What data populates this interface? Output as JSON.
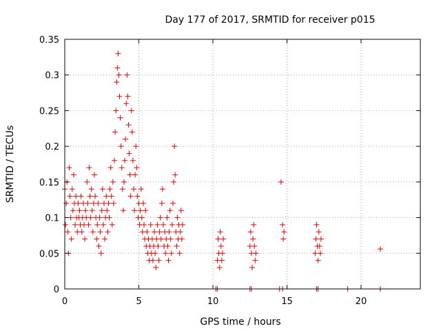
{
  "chart_data": {
    "type": "scatter",
    "title": "Day 177 of 2017, SRMTID for receiver p015",
    "xlabel": "GPS time / hours",
    "ylabel": "SRMTID / TECUs",
    "xlim": [
      0,
      24
    ],
    "ylim": [
      0,
      0.35
    ],
    "xticks": [
      0,
      5,
      10,
      15,
      20
    ],
    "xtick_labels": [
      "0",
      "5",
      "10",
      "15",
      "20"
    ],
    "yticks": [
      0,
      0.05,
      0.1,
      0.15,
      0.2,
      0.25,
      0.3,
      0.35
    ],
    "ytick_labels": [
      "0",
      "0.05",
      "0.1",
      "0.15",
      "0.2",
      "0.25",
      "0.3",
      "0.35"
    ],
    "grid": true,
    "marker": "+",
    "color": "#dd0000",
    "series": [
      {
        "name": "SRMTID",
        "points": [
          [
            0.0,
            0.14
          ],
          [
            0.05,
            0.09
          ],
          [
            0.1,
            0.12
          ],
          [
            0.15,
            0.15
          ],
          [
            0.2,
            0.08
          ],
          [
            0.25,
            0.05
          ],
          [
            0.3,
            0.17
          ],
          [
            0.35,
            0.13
          ],
          [
            0.4,
            0.1
          ],
          [
            0.45,
            0.07
          ],
          [
            0.5,
            0.14
          ],
          [
            0.55,
            0.11
          ],
          [
            0.6,
            0.16
          ],
          [
            0.65,
            0.12
          ],
          [
            0.7,
            0.09
          ],
          [
            0.75,
            0.13
          ],
          [
            0.8,
            0.1
          ],
          [
            0.85,
            0.08
          ],
          [
            0.9,
            0.12
          ],
          [
            0.95,
            0.1
          ],
          [
            1.0,
            0.11
          ],
          [
            1.05,
            0.09
          ],
          [
            1.1,
            0.13
          ],
          [
            1.15,
            0.08
          ],
          [
            1.2,
            0.1
          ],
          [
            1.25,
            0.12
          ],
          [
            1.3,
            0.09
          ],
          [
            1.35,
            0.07
          ],
          [
            1.4,
            0.11
          ],
          [
            1.45,
            0.1
          ],
          [
            1.5,
            0.15
          ],
          [
            1.55,
            0.12
          ],
          [
            1.6,
            0.09
          ],
          [
            1.65,
            0.17
          ],
          [
            1.7,
            0.13
          ],
          [
            1.75,
            0.1
          ],
          [
            1.8,
            0.14
          ],
          [
            1.85,
            0.11
          ],
          [
            1.9,
            0.08
          ],
          [
            1.95,
            0.12
          ],
          [
            2.0,
            0.16
          ],
          [
            2.05,
            0.13
          ],
          [
            2.1,
            0.1
          ],
          [
            2.15,
            0.07
          ],
          [
            2.2,
            0.09
          ],
          [
            2.25,
            0.12
          ],
          [
            2.3,
            0.06
          ],
          [
            2.35,
            0.1
          ],
          [
            2.4,
            0.08
          ],
          [
            2.45,
            0.05
          ],
          [
            2.5,
            0.11
          ],
          [
            2.55,
            0.14
          ],
          [
            2.6,
            0.09
          ],
          [
            2.65,
            0.12
          ],
          [
            2.7,
            0.07
          ],
          [
            2.75,
            0.1
          ],
          [
            2.8,
            0.13
          ],
          [
            2.85,
            0.11
          ],
          [
            2.9,
            0.08
          ],
          [
            2.95,
            0.12
          ],
          [
            3.0,
            0.1
          ],
          [
            3.05,
            0.14
          ],
          [
            3.1,
            0.17
          ],
          [
            3.15,
            0.13
          ],
          [
            3.2,
            0.09
          ],
          [
            3.25,
            0.15
          ],
          [
            3.3,
            0.12
          ],
          [
            3.35,
            0.18
          ],
          [
            3.4,
            0.22
          ],
          [
            3.45,
            0.25
          ],
          [
            3.5,
            0.29
          ],
          [
            3.55,
            0.31
          ],
          [
            3.6,
            0.33
          ],
          [
            3.65,
            0.3
          ],
          [
            3.7,
            0.27
          ],
          [
            3.75,
            0.24
          ],
          [
            3.8,
            0.2
          ],
          [
            3.85,
            0.17
          ],
          [
            3.9,
            0.14
          ],
          [
            3.95,
            0.11
          ],
          [
            4.0,
            0.15
          ],
          [
            4.05,
            0.18
          ],
          [
            4.1,
            0.21
          ],
          [
            4.15,
            0.26
          ],
          [
            4.2,
            0.3
          ],
          [
            4.25,
            0.27
          ],
          [
            4.3,
            0.23
          ],
          [
            4.35,
            0.19
          ],
          [
            4.4,
            0.16
          ],
          [
            4.45,
            0.13
          ],
          [
            4.5,
            0.25
          ],
          [
            4.55,
            0.22
          ],
          [
            4.6,
            0.18
          ],
          [
            4.65,
            0.14
          ],
          [
            4.7,
            0.11
          ],
          [
            4.75,
            0.16
          ],
          [
            4.8,
            0.2
          ],
          [
            4.85,
            0.17
          ],
          [
            4.9,
            0.13
          ],
          [
            4.95,
            0.1
          ],
          [
            5.0,
            0.12
          ],
          [
            5.05,
            0.09
          ],
          [
            5.1,
            0.11
          ],
          [
            5.15,
            0.14
          ],
          [
            5.2,
            0.1
          ],
          [
            5.25,
            0.08
          ],
          [
            5.3,
            0.12
          ],
          [
            5.35,
            0.09
          ],
          [
            5.4,
            0.07
          ],
          [
            5.45,
            0.11
          ],
          [
            5.5,
            0.06
          ],
          [
            5.55,
            0.08
          ],
          [
            5.6,
            0.05
          ],
          [
            5.65,
            0.07
          ],
          [
            5.7,
            0.04
          ],
          [
            5.75,
            0.06
          ],
          [
            5.8,
            0.09
          ],
          [
            5.85,
            0.05
          ],
          [
            5.9,
            0.07
          ],
          [
            5.95,
            0.04
          ],
          [
            6.0,
            0.06
          ],
          [
            6.05,
            0.08
          ],
          [
            6.1,
            0.05
          ],
          [
            6.15,
            0.03
          ],
          [
            6.2,
            0.07
          ],
          [
            6.25,
            0.09
          ],
          [
            6.3,
            0.06
          ],
          [
            6.35,
            0.04
          ],
          [
            6.4,
            0.08
          ],
          [
            6.45,
            0.1
          ],
          [
            6.5,
            0.07
          ],
          [
            6.55,
            0.12
          ],
          [
            6.6,
            0.14
          ],
          [
            6.65,
            0.09
          ],
          [
            6.7,
            0.06
          ],
          [
            6.75,
            0.08
          ],
          [
            6.8,
            0.05
          ],
          [
            6.85,
            0.07
          ],
          [
            6.9,
            0.1
          ],
          [
            6.95,
            0.06
          ],
          [
            7.0,
            0.04
          ],
          [
            7.05,
            0.08
          ],
          [
            7.1,
            0.11
          ],
          [
            7.15,
            0.07
          ],
          [
            7.2,
            0.05
          ],
          [
            7.25,
            0.09
          ],
          [
            7.3,
            0.12
          ],
          [
            7.35,
            0.15
          ],
          [
            7.4,
            0.2
          ],
          [
            7.45,
            0.16
          ],
          [
            7.5,
            0.08
          ],
          [
            7.55,
            0.06
          ],
          [
            7.6,
            0.1
          ],
          [
            7.65,
            0.07
          ],
          [
            7.7,
            0.09
          ],
          [
            7.75,
            0.05
          ],
          [
            7.8,
            0.08
          ],
          [
            7.85,
            0.11
          ],
          [
            7.9,
            0.07
          ],
          [
            7.95,
            0.09
          ],
          [
            10.2,
            0.0
          ],
          [
            10.3,
            0.0
          ],
          [
            10.3,
            0.04
          ],
          [
            10.35,
            0.07
          ],
          [
            10.4,
            0.05
          ],
          [
            10.45,
            0.03
          ],
          [
            10.5,
            0.08
          ],
          [
            10.55,
            0.06
          ],
          [
            10.6,
            0.04
          ],
          [
            10.65,
            0.05
          ],
          [
            10.7,
            0.07
          ],
          [
            12.5,
            0.0
          ],
          [
            12.6,
            0.0
          ],
          [
            12.5,
            0.06
          ],
          [
            12.55,
            0.08
          ],
          [
            12.6,
            0.05
          ],
          [
            12.65,
            0.03
          ],
          [
            12.7,
            0.07
          ],
          [
            12.75,
            0.09
          ],
          [
            12.8,
            0.06
          ],
          [
            12.85,
            0.04
          ],
          [
            12.9,
            0.05
          ],
          [
            14.5,
            0.0
          ],
          [
            14.7,
            0.0
          ],
          [
            14.6,
            0.15
          ],
          [
            14.7,
            0.09
          ],
          [
            14.75,
            0.07
          ],
          [
            14.8,
            0.08
          ],
          [
            17.0,
            0.0
          ],
          [
            17.1,
            0.0
          ],
          [
            16.9,
            0.05
          ],
          [
            16.95,
            0.07
          ],
          [
            17.0,
            0.09
          ],
          [
            17.05,
            0.06
          ],
          [
            17.1,
            0.04
          ],
          [
            17.15,
            0.08
          ],
          [
            17.2,
            0.06
          ],
          [
            17.25,
            0.05
          ],
          [
            17.3,
            0.07
          ],
          [
            19.1,
            0.0
          ],
          [
            21.3,
            0.0
          ],
          [
            21.3,
            0.056
          ]
        ]
      }
    ]
  }
}
